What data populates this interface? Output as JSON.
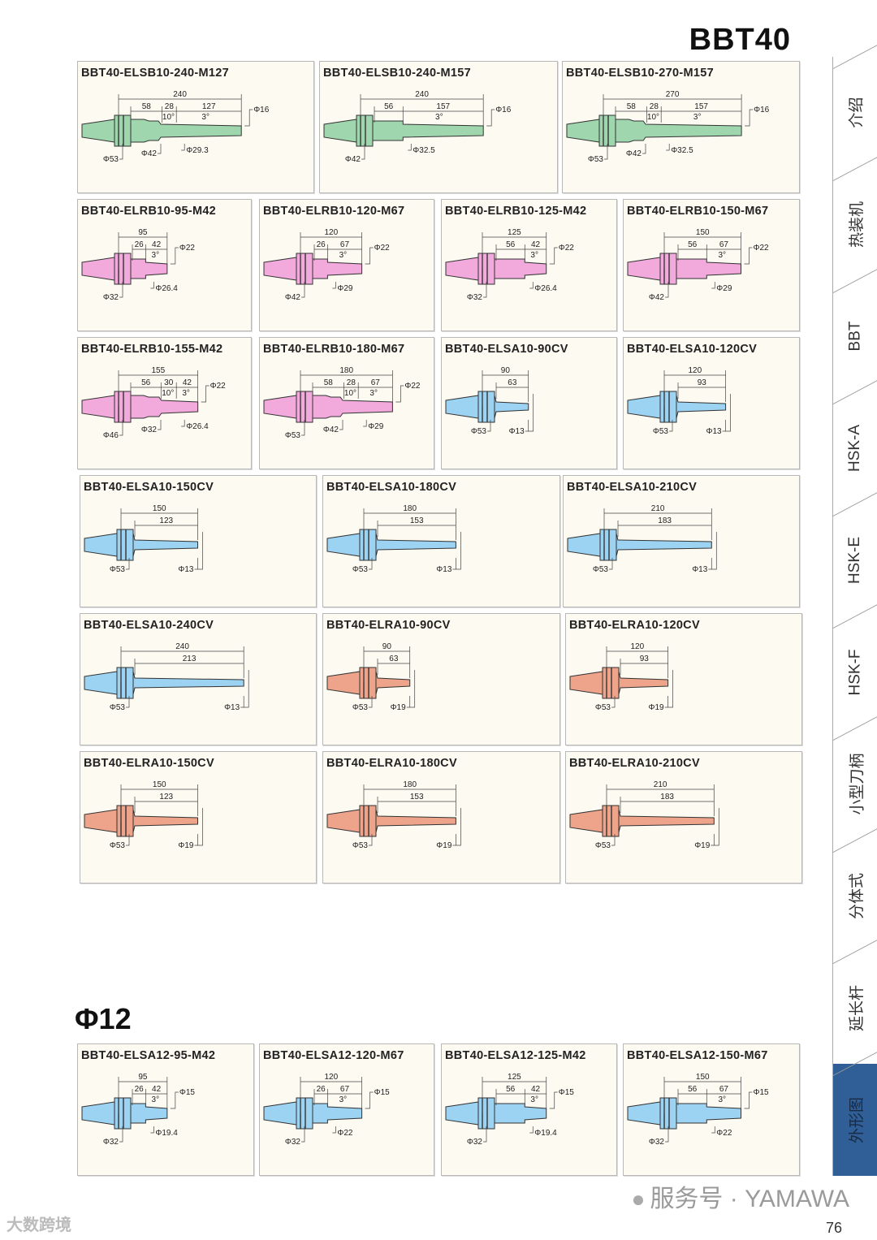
{
  "page_title": "BBT40",
  "section_title": "Φ12",
  "page_number": "76",
  "watermark": "服务号 · YAMAWA",
  "corner_watermark": "大数跨境",
  "colors": {
    "green": "#9fd6ae",
    "pink": "#f2a9dc",
    "blue": "#9cd2f2",
    "orange": "#eea48a",
    "tab_active": "#2f5f96"
  },
  "tabs": [
    {
      "label": "介绍"
    },
    {
      "label": "热装机"
    },
    {
      "label": "BBT"
    },
    {
      "label": "HSK-A"
    },
    {
      "label": "HSK-E"
    },
    {
      "label": "HSK-F"
    },
    {
      "label": "小型刀柄"
    },
    {
      "label": "分体式"
    },
    {
      "label": "延长杆"
    },
    {
      "label": "外形图",
      "active": true
    }
  ],
  "cards": [
    {
      "title": "BBT40-ELSB10-240-M127",
      "color": "green",
      "total": "240",
      "segs": [
        "58",
        "28",
        "127"
      ],
      "angles": [
        "10°",
        "3°"
      ],
      "tip": "Φ16",
      "bottom": [
        "Φ53",
        "Φ42",
        "Φ29.3"
      ]
    },
    {
      "title": "BBT40-ELSB10-240-M157",
      "color": "green",
      "total": "240",
      "segs": [
        "56",
        "157"
      ],
      "angles": [
        "3°"
      ],
      "tip": "Φ16",
      "bottom": [
        "Φ42",
        "Φ32.5"
      ]
    },
    {
      "title": "BBT40-ELSB10-270-M157",
      "color": "green",
      "total": "270",
      "segs": [
        "58",
        "28",
        "157"
      ],
      "angles": [
        "10°",
        "3°"
      ],
      "tip": "Φ16",
      "bottom": [
        "Φ53",
        "Φ42",
        "Φ32.5"
      ]
    },
    {
      "title": "BBT40-ELRB10-95-M42",
      "color": "pink",
      "total": "95",
      "segs": [
        "26",
        "42"
      ],
      "angles": [
        "3°"
      ],
      "tip": "Φ22",
      "bottom": [
        "Φ32",
        "Φ26.4"
      ]
    },
    {
      "title": "BBT40-ELRB10-120-M67",
      "color": "pink",
      "total": "120",
      "segs": [
        "26",
        "67"
      ],
      "angles": [
        "3°"
      ],
      "tip": "Φ22",
      "bottom": [
        "Φ42",
        "Φ29"
      ]
    },
    {
      "title": "BBT40-ELRB10-125-M42",
      "color": "pink",
      "total": "125",
      "segs": [
        "56",
        "42"
      ],
      "angles": [
        "3°"
      ],
      "tip": "Φ22",
      "bottom": [
        "Φ32",
        "Φ26.4"
      ]
    },
    {
      "title": "BBT40-ELRB10-150-M67",
      "color": "pink",
      "total": "150",
      "segs": [
        "56",
        "67"
      ],
      "angles": [
        "3°"
      ],
      "tip": "Φ22",
      "bottom": [
        "Φ42",
        "Φ29"
      ]
    },
    {
      "title": "BBT40-ELRB10-155-M42",
      "color": "pink",
      "total": "155",
      "segs": [
        "56",
        "30",
        "42"
      ],
      "angles": [
        "10°",
        "3°"
      ],
      "tip": "Φ22",
      "bottom": [
        "Φ46",
        "Φ32",
        "Φ26.4"
      ]
    },
    {
      "title": "BBT40-ELRB10-180-M67",
      "color": "pink",
      "total": "180",
      "segs": [
        "58",
        "28",
        "67"
      ],
      "angles": [
        "10°",
        "3°"
      ],
      "tip": "Φ22",
      "bottom": [
        "Φ53",
        "Φ42",
        "Φ29"
      ]
    },
    {
      "title": "BBT40-ELSA10-90CV",
      "color": "blue",
      "total": "90",
      "segs": [
        "63"
      ],
      "angles": [],
      "tip": "",
      "bottom": [
        "Φ53",
        "Φ13"
      ]
    },
    {
      "title": "BBT40-ELSA10-120CV",
      "color": "blue",
      "total": "120",
      "segs": [
        "93"
      ],
      "angles": [],
      "tip": "",
      "bottom": [
        "Φ53",
        "Φ13"
      ]
    },
    {
      "title": "BBT40-ELSA10-150CV",
      "color": "blue",
      "total": "150",
      "segs": [
        "123"
      ],
      "angles": [],
      "tip": "",
      "bottom": [
        "Φ53",
        "Φ13"
      ]
    },
    {
      "title": "BBT40-ELSA10-180CV",
      "color": "blue",
      "total": "180",
      "segs": [
        "153"
      ],
      "angles": [],
      "tip": "",
      "bottom": [
        "Φ53",
        "Φ13"
      ]
    },
    {
      "title": "BBT40-ELSA10-210CV",
      "color": "blue",
      "total": "210",
      "segs": [
        "183"
      ],
      "angles": [],
      "tip": "",
      "bottom": [
        "Φ53",
        "Φ13"
      ]
    },
    {
      "title": "BBT40-ELSA10-240CV",
      "color": "blue",
      "total": "240",
      "segs": [
        "213"
      ],
      "angles": [],
      "tip": "",
      "bottom": [
        "Φ53",
        "Φ13"
      ]
    },
    {
      "title": "BBT40-ELRA10-90CV",
      "color": "orange",
      "total": "90",
      "segs": [
        "63"
      ],
      "angles": [],
      "tip": "",
      "bottom": [
        "Φ53",
        "Φ19"
      ]
    },
    {
      "title": "BBT40-ELRA10-120CV",
      "color": "orange",
      "total": "120",
      "segs": [
        "93"
      ],
      "angles": [],
      "tip": "",
      "bottom": [
        "Φ53",
        "Φ19"
      ]
    },
    {
      "title": "BBT40-ELRA10-150CV",
      "color": "orange",
      "total": "150",
      "segs": [
        "123"
      ],
      "angles": [],
      "tip": "",
      "bottom": [
        "Φ53",
        "Φ19"
      ]
    },
    {
      "title": "BBT40-ELRA10-180CV",
      "color": "orange",
      "total": "180",
      "segs": [
        "153"
      ],
      "angles": [],
      "tip": "",
      "bottom": [
        "Φ53",
        "Φ19"
      ]
    },
    {
      "title": "BBT40-ELRA10-210CV",
      "color": "orange",
      "total": "210",
      "segs": [
        "183"
      ],
      "angles": [],
      "tip": "",
      "bottom": [
        "Φ53",
        "Φ19"
      ]
    },
    {
      "title": "BBT40-ELSA12-95-M42",
      "color": "blue",
      "total": "95",
      "segs": [
        "26",
        "42"
      ],
      "angles": [
        "3°"
      ],
      "tip": "Φ15",
      "bottom": [
        "Φ32",
        "Φ19.4"
      ]
    },
    {
      "title": "BBT40-ELSA12-120-M67",
      "color": "blue",
      "total": "120",
      "segs": [
        "26",
        "67"
      ],
      "angles": [
        "3°"
      ],
      "tip": "Φ15",
      "bottom": [
        "Φ32",
        "Φ22"
      ]
    },
    {
      "title": "BBT40-ELSA12-125-M42",
      "color": "blue",
      "total": "125",
      "segs": [
        "56",
        "42"
      ],
      "angles": [
        "3°"
      ],
      "tip": "Φ15",
      "bottom": [
        "Φ32",
        "Φ19.4"
      ]
    },
    {
      "title": "BBT40-ELSA12-150-M67",
      "color": "blue",
      "total": "150",
      "segs": [
        "56",
        "67"
      ],
      "angles": [
        "3°"
      ],
      "tip": "Φ15",
      "bottom": [
        "Φ32",
        "Φ22"
      ]
    }
  ]
}
